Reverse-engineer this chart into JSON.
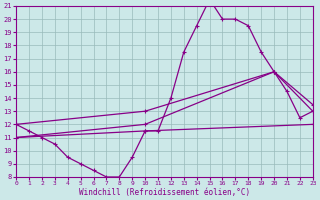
{
  "xlabel": "Windchill (Refroidissement éolien,°C)",
  "bg_color": "#cce8e8",
  "line_color": "#880088",
  "grid_color": "#99bbbb",
  "xlim": [
    0,
    23
  ],
  "ylim": [
    8,
    21
  ],
  "xticks": [
    0,
    1,
    2,
    3,
    4,
    5,
    6,
    7,
    8,
    9,
    10,
    11,
    12,
    13,
    14,
    15,
    16,
    17,
    18,
    19,
    20,
    21,
    22,
    23
  ],
  "yticks": [
    8,
    9,
    10,
    11,
    12,
    13,
    14,
    15,
    16,
    17,
    18,
    19,
    20,
    21
  ],
  "series1_x": [
    0,
    1,
    2,
    3,
    4,
    5,
    6,
    7,
    8,
    9,
    10,
    11,
    12,
    13,
    14,
    15,
    16,
    17,
    18,
    19,
    20,
    21,
    22,
    23
  ],
  "series1_y": [
    12.0,
    11.5,
    11.0,
    10.5,
    9.5,
    9.0,
    8.5,
    8.0,
    8.0,
    9.5,
    11.5,
    11.5,
    14.0,
    17.5,
    19.5,
    21.5,
    20.0,
    20.0,
    19.5,
    17.5,
    16.0,
    14.5,
    12.5,
    13.0
  ],
  "series2_x": [
    0,
    10,
    20,
    23
  ],
  "series2_y": [
    12.0,
    13.0,
    16.0,
    13.0
  ],
  "series3_x": [
    0,
    10,
    20,
    23
  ],
  "series3_y": [
    11.0,
    12.0,
    16.0,
    13.5
  ],
  "series4_x": [
    0,
    10,
    23
  ],
  "series4_y": [
    11.0,
    11.5,
    12.0
  ]
}
